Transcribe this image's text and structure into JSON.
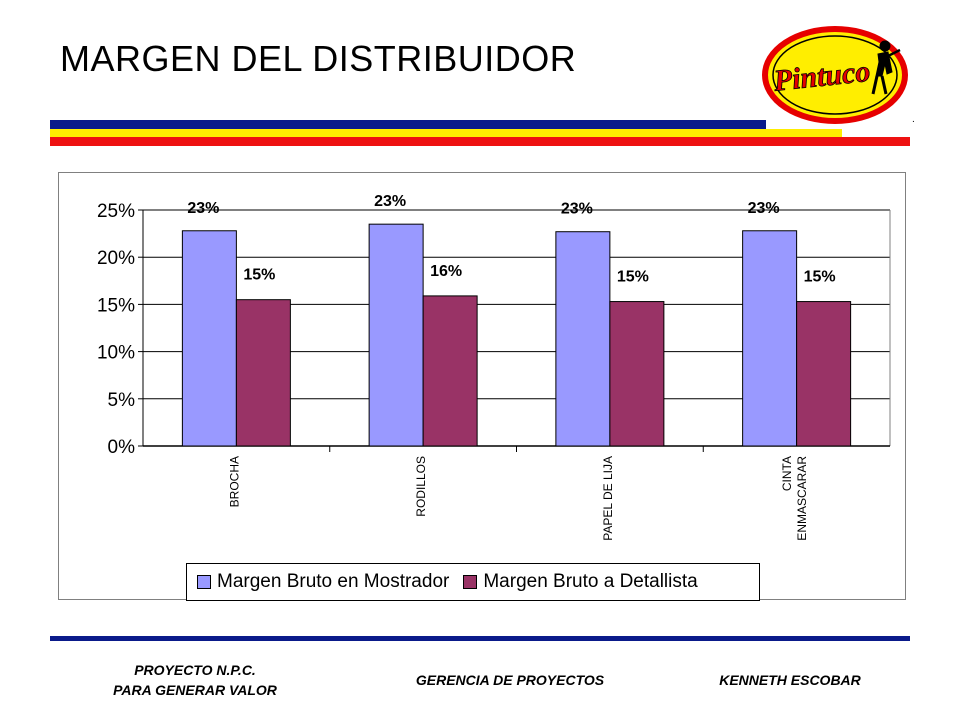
{
  "header": {
    "title": "MARGEN DEL DISTRIBUIDOR",
    "logo_text": "Pintuco",
    "logo_mark": "."
  },
  "colors": {
    "navy": "#0a1a8a",
    "yellow": "#ffee00",
    "red": "#ee1111",
    "series_mostrador": "#9999ff",
    "series_detallista": "#993366",
    "logo_ring": "#e60000",
    "logo_fill": "#ffee00"
  },
  "chart_data": {
    "type": "bar",
    "categories": [
      "BROCHA",
      "RODILLOS",
      "PAPEL DE LIJA",
      "CINTA ENMASCARAR"
    ],
    "category_lines": [
      [
        "BROCHA"
      ],
      [
        "RODILLOS"
      ],
      [
        "PAPEL DE LIJA"
      ],
      [
        "CINTA",
        "ENMASCARAR"
      ]
    ],
    "series": [
      {
        "name": "Margen Bruto en Mostrador",
        "values": [
          0.228,
          0.235,
          0.227,
          0.228
        ],
        "labels": [
          "23%",
          "23%",
          "23%",
          "23%"
        ],
        "color": "#9999ff"
      },
      {
        "name": "Margen Bruto a Detallista",
        "values": [
          0.155,
          0.159,
          0.153,
          0.153
        ],
        "labels": [
          "15%",
          "16%",
          "15%",
          "15%"
        ],
        "color": "#993366"
      }
    ],
    "y_ticks": [
      "0%",
      "5%",
      "10%",
      "15%",
      "20%",
      "25%"
    ],
    "y_tick_values": [
      0,
      0.05,
      0.1,
      0.15,
      0.2,
      0.25
    ],
    "ylim": [
      0,
      0.25
    ],
    "grid": true,
    "legend_position": "bottom"
  },
  "footer": {
    "project_line1": "PROYECTO N.P.C.",
    "project_line2": "PARA GENERAR VALOR",
    "department": "GERENCIA DE PROYECTOS",
    "author": "KENNETH ESCOBAR"
  }
}
